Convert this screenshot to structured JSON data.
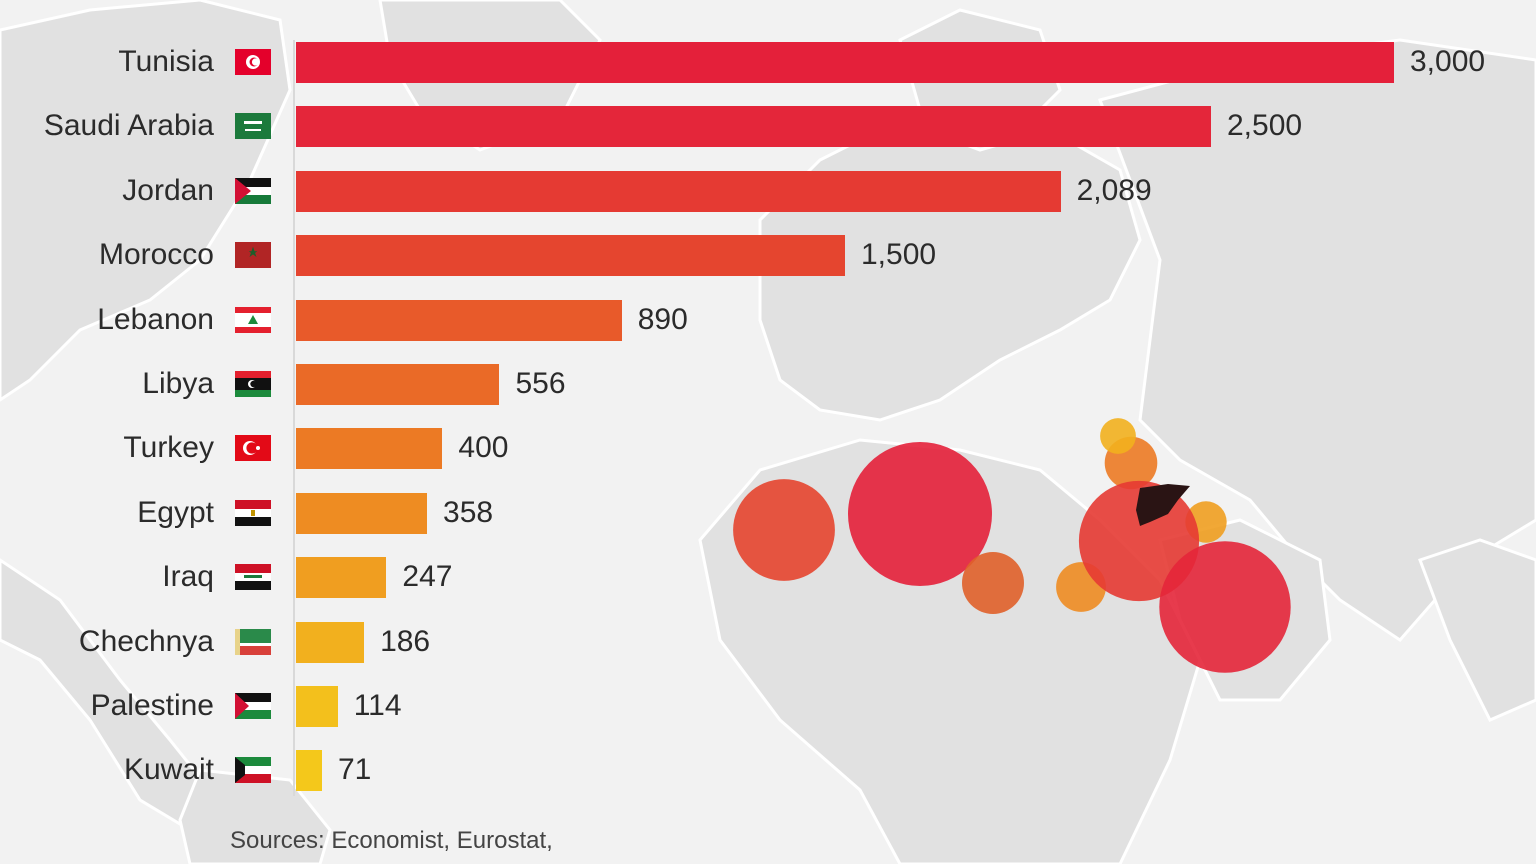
{
  "chart_data": {
    "type": "bar",
    "orientation": "horizontal",
    "categories": [
      "Tunisia",
      "Saudi Arabia",
      "Jordan",
      "Morocco",
      "Lebanon",
      "Libya",
      "Turkey",
      "Egypt",
      "Iraq",
      "Chechnya",
      "Palestine",
      "Kuwait"
    ],
    "values": [
      3000,
      2500,
      2089,
      1500,
      890,
      556,
      400,
      358,
      247,
      186,
      114,
      71
    ],
    "value_labels": [
      "3,000",
      "2,500",
      "2,089",
      "1,500",
      "890",
      "556",
      "400",
      "358",
      "247",
      "186",
      "114",
      "71"
    ],
    "bar_colors": [
      "#e4203a",
      "#e4263a",
      "#e53a33",
      "#e5452f",
      "#e85a2a",
      "#ea6a27",
      "#ec7a24",
      "#ee8c22",
      "#f09e20",
      "#f2b01e",
      "#f3c01c",
      "#f4c81b"
    ],
    "xlim": [
      0,
      3000
    ],
    "title": "",
    "xlabel": "",
    "ylabel": "",
    "grid": false,
    "legend": "none"
  },
  "flags": [
    "tunisia-flag-icon",
    "saudi-arabia-flag-icon",
    "jordan-flag-icon",
    "morocco-flag-icon",
    "lebanon-flag-icon",
    "libya-flag-icon",
    "turkey-flag-icon",
    "egypt-flag-icon",
    "iraq-flag-icon",
    "chechnya-flag-icon",
    "palestine-flag-icon",
    "kuwait-flag-icon"
  ],
  "map_bubbles": [
    {
      "name": "Morocco",
      "value": 1500,
      "color": "#e5452f"
    },
    {
      "name": "Tunisia",
      "value": 3000,
      "color": "#e4203a"
    },
    {
      "name": "Libya",
      "value": 556,
      "color": "#e0602a"
    },
    {
      "name": "Egypt",
      "value": 358,
      "color": "#ee8c22"
    },
    {
      "name": "Turkey",
      "value": 400,
      "color": "#ec7a24"
    },
    {
      "name": "Chechnya",
      "value": 186,
      "color": "#f2b01e"
    },
    {
      "name": "Iraq",
      "value": 247,
      "color": "#f09e20"
    },
    {
      "name": "Jordan",
      "value": 2089,
      "color": "#e53a33"
    },
    {
      "name": "Saudi Arabia",
      "value": 2500,
      "color": "#e4263a"
    }
  ],
  "sources": "Sources: Economist, Eurostat,"
}
